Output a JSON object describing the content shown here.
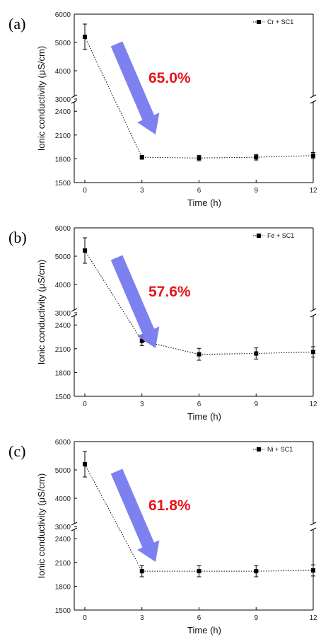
{
  "chart_data": [
    {
      "type": "line",
      "panel_label": "(a)",
      "xlabel": "Time (h)",
      "ylabel": "Ionic conductivity (μS/cm)",
      "x": [
        0,
        3,
        6,
        9,
        12
      ],
      "x_ticks": [
        "0",
        "3",
        "6",
        "9",
        "12"
      ],
      "y_ticks_lower": [
        "1500",
        "1800",
        "2100",
        "2400"
      ],
      "y_ticks_upper": [
        "3000",
        "4000",
        "5000",
        "6000"
      ],
      "y_break": true,
      "series": [
        {
          "name": "Cr + SC1",
          "values": [
            5200,
            1820,
            1810,
            1820,
            1840
          ],
          "errors": [
            450,
            25,
            35,
            35,
            40
          ]
        }
      ],
      "annotation": "65.0%",
      "legend_position": "top-right"
    },
    {
      "type": "line",
      "panel_label": "(b)",
      "xlabel": "Time (h)",
      "ylabel": "Ionic conductivity (μS/cm)",
      "x": [
        0,
        3,
        6,
        9,
        12
      ],
      "x_ticks": [
        "0",
        "3",
        "6",
        "9",
        "12"
      ],
      "y_ticks_lower": [
        "1500",
        "1800",
        "2100",
        "2400"
      ],
      "y_ticks_upper": [
        "3000",
        "4000",
        "5000",
        "6000"
      ],
      "y_break": true,
      "series": [
        {
          "name": "Fe + SC1",
          "values": [
            5200,
            2200,
            2030,
            2040,
            2060
          ],
          "errors": [
            450,
            60,
            75,
            70,
            65
          ]
        }
      ],
      "annotation": "57.6%",
      "legend_position": "top-right"
    },
    {
      "type": "line",
      "panel_label": "(c)",
      "xlabel": "Time (h)",
      "ylabel": "Ionic conductivity (μS/cm)",
      "x": [
        0,
        3,
        6,
        9,
        12
      ],
      "x_ticks": [
        "0",
        "3",
        "6",
        "9",
        "12"
      ],
      "y_ticks_lower": [
        "1500",
        "1800",
        "2100",
        "2400"
      ],
      "y_ticks_upper": [
        "3000",
        "4000",
        "5000",
        "6000"
      ],
      "y_break": true,
      "series": [
        {
          "name": "Ni + SC1",
          "values": [
            5200,
            1990,
            1990,
            1990,
            2000
          ],
          "errors": [
            450,
            70,
            70,
            70,
            70
          ]
        }
      ],
      "annotation": "61.8%",
      "legend_position": "top-right"
    }
  ],
  "colors": {
    "arrow": "#6f73ee",
    "annotation": "#e8141c",
    "line": "#000000"
  }
}
